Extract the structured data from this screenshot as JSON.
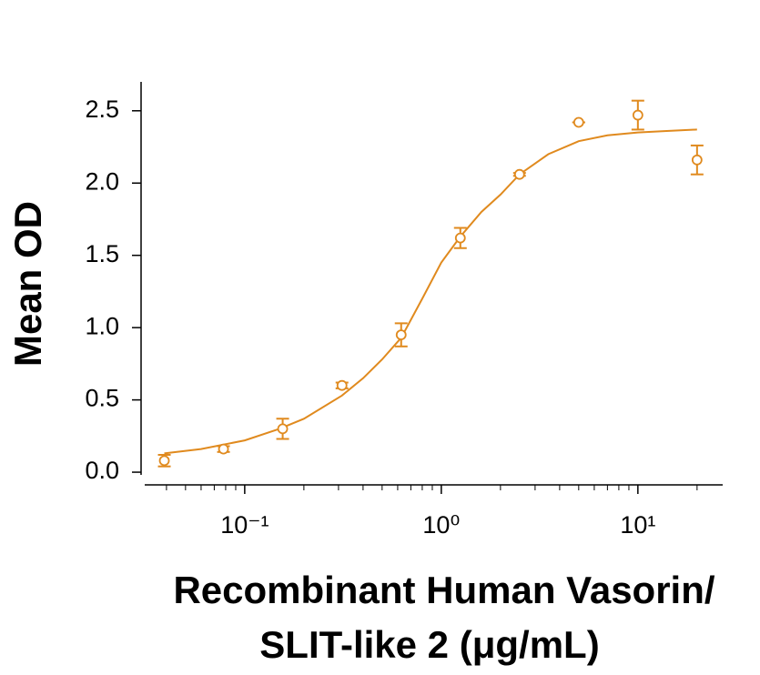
{
  "chart_data": {
    "type": "scatter",
    "y_label": "Mean OD",
    "x_label": [
      "Recombinant Human Vasorin/",
      "SLIT-like 2 (μg/mL)"
    ],
    "x_log": true,
    "xlim": [
      0.031,
      27
    ],
    "ylim": [
      -0.05,
      2.7
    ],
    "xticks": [
      {
        "value": 0.1,
        "label": "10⁻¹"
      },
      {
        "value": 1,
        "label": "10⁰"
      },
      {
        "value": 10,
        "label": "10¹"
      }
    ],
    "xminorticks": [
      0.04,
      0.05,
      0.06,
      0.07,
      0.08,
      0.09,
      0.2,
      0.3,
      0.4,
      0.5,
      0.6,
      0.7,
      0.8,
      0.9,
      2,
      3,
      4,
      5,
      6,
      7,
      8,
      9,
      20
    ],
    "yticks": [
      {
        "value": 0,
        "label": "0.0"
      },
      0.5,
      {
        "value": 1,
        "label": "1.0"
      },
      1.5,
      {
        "value": 2,
        "label": "2.0"
      },
      2.5
    ],
    "series": [
      {
        "color": "#e08a1e",
        "marker": "circle",
        "x": [
          0.039,
          0.078,
          0.156,
          0.3125,
          0.625,
          1.25,
          2.5,
          5,
          10,
          20
        ],
        "values": [
          0.08,
          0.16,
          0.3,
          0.6,
          0.95,
          1.62,
          2.06,
          2.42,
          2.47,
          2.16
        ],
        "errors": [
          0.04,
          0.02,
          0.07,
          0.02,
          0.08,
          0.07,
          0.01,
          0,
          0.1,
          0.1
        ]
      },
      {
        "color": "#e08a1e",
        "line": true,
        "x": [
          0.039,
          0.06,
          0.1,
          0.15,
          0.2,
          0.3125,
          0.4,
          0.5,
          0.625,
          0.8,
          1,
          1.25,
          1.6,
          2,
          2.5,
          3.5,
          5,
          7,
          10,
          14,
          20
        ],
        "values": [
          0.13,
          0.16,
          0.22,
          0.3,
          0.37,
          0.53,
          0.65,
          0.78,
          0.93,
          1.2,
          1.45,
          1.63,
          1.8,
          1.92,
          2.06,
          2.2,
          2.29,
          2.33,
          2.35,
          2.36,
          2.37
        ]
      }
    ]
  }
}
